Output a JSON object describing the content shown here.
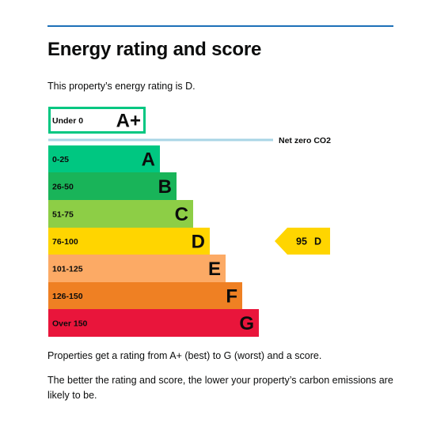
{
  "page": {
    "title": "Energy rating and score",
    "intro": "This property’s energy rating is D.",
    "footer_1": "Properties get a rating from A+ (best) to G (worst) and a score.",
    "footer_2": "The better the rating and score, the lower your property’s carbon emissions are likely to be."
  },
  "chart_data": {
    "type": "bar",
    "title": "",
    "xlabel": "",
    "ylabel": "",
    "bands": [
      {
        "letter": "A+",
        "range": "Under 0",
        "color": "#ffffff",
        "border": "#00c781",
        "text_color": "#0b0c0c"
      },
      {
        "letter": "A",
        "range": "0-25",
        "color": "#00c781",
        "text_color": "#0b0c0c"
      },
      {
        "letter": "B",
        "range": "26-50",
        "color": "#19b459",
        "text_color": "#0b0c0c"
      },
      {
        "letter": "C",
        "range": "51-75",
        "color": "#8dce46",
        "text_color": "#0b0c0c"
      },
      {
        "letter": "D",
        "range": "76-100",
        "color": "#ffd500",
        "text_color": "#0b0c0c"
      },
      {
        "letter": "E",
        "range": "101-125",
        "color": "#fcaa65",
        "text_color": "#0b0c0c"
      },
      {
        "letter": "F",
        "range": "126-150",
        "color": "#ef8023",
        "text_color": "#0b0c0c"
      },
      {
        "letter": "G",
        "range": "Over 150",
        "color": "#e9153b",
        "text_color": "#0b0c0c"
      }
    ],
    "reference_line": {
      "label": "Net zero CO2",
      "color": "#a8d5e5"
    },
    "current": {
      "score": 95,
      "letter": "D",
      "color": "#ffd500"
    }
  }
}
